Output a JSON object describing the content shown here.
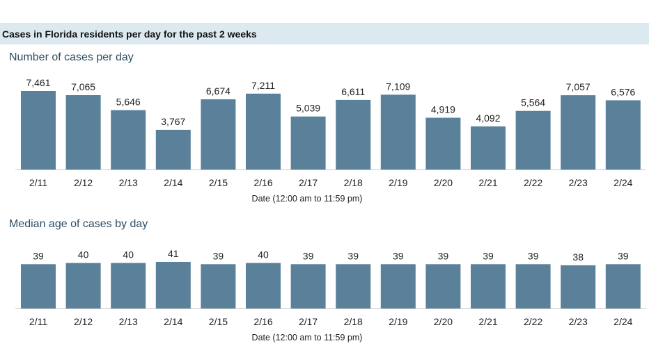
{
  "header": {
    "title": "Cases in Florida residents per day for the past 2 weeks"
  },
  "chart_data": [
    {
      "type": "bar",
      "title": "Number of cases per day",
      "xlabel": "Date (12:00 am to 11:59 pm)",
      "ylabel": "",
      "categories": [
        "2/11",
        "2/12",
        "2/13",
        "2/14",
        "2/15",
        "2/16",
        "2/17",
        "2/18",
        "2/19",
        "2/20",
        "2/21",
        "2/22",
        "2/23",
        "2/24"
      ],
      "values": [
        7461,
        7065,
        5646,
        3767,
        6674,
        7211,
        5039,
        6611,
        7109,
        4919,
        4092,
        5564,
        7057,
        6576
      ],
      "labels": [
        "7,461",
        "7,065",
        "5,646",
        "3,767",
        "6,674",
        "7,211",
        "5,039",
        "6,611",
        "7,109",
        "4,919",
        "4,092",
        "5,564",
        "7,057",
        "6,576"
      ],
      "ylim": [
        0,
        7461
      ],
      "grid": false,
      "color": "#5a8199"
    },
    {
      "type": "bar",
      "title": "Median age of cases by day",
      "xlabel": "Date (12:00 am to 11:59 pm)",
      "ylabel": "",
      "categories": [
        "2/11",
        "2/12",
        "2/13",
        "2/14",
        "2/15",
        "2/16",
        "2/17",
        "2/18",
        "2/19",
        "2/20",
        "2/21",
        "2/22",
        "2/23",
        "2/24"
      ],
      "values": [
        39,
        40,
        40,
        41,
        39,
        40,
        39,
        39,
        39,
        39,
        39,
        39,
        38,
        39
      ],
      "labels": [
        "39",
        "40",
        "40",
        "41",
        "39",
        "40",
        "39",
        "39",
        "39",
        "39",
        "39",
        "39",
        "38",
        "39"
      ],
      "ylim": [
        0,
        41
      ],
      "grid": false,
      "color": "#5a8199"
    }
  ]
}
